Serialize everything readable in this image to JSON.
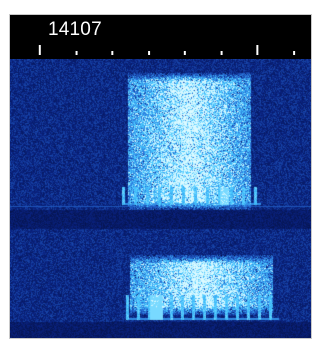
{
  "scale": {
    "frequency_label": "14107"
  },
  "colors": {
    "background": "#ffffff",
    "scale_background": "#000000",
    "noise_floor": "#0a1f6e",
    "signal": "#39c6ff",
    "signal_peak": "#cff6ff"
  },
  "waterfall": {
    "description_icon": "spectrum-waterfall"
  }
}
